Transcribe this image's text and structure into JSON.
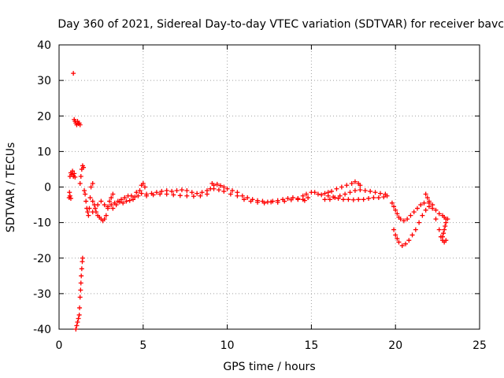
{
  "chart_data": {
    "type": "scatter",
    "title": "Day 360 of 2021, Sidereal Day-to-day VTEC variation (SDTVAR) for receiver bavc",
    "xlabel": "GPS time / hours",
    "ylabel": "SDTVAR / TECUs",
    "xlim": [
      0,
      25
    ],
    "ylim": [
      -40,
      40
    ],
    "xticks": [
      "0",
      "5",
      "10",
      "15",
      "20",
      "25"
    ],
    "yticks": [
      "40",
      "30",
      "20",
      "10",
      "0",
      "-10",
      "-20",
      "-30",
      "-40"
    ],
    "grid": true,
    "marker": "+",
    "color": "#ff0000",
    "series": [
      {
        "name": "SDTVAR",
        "points": [
          [
            0.6,
            -3
          ],
          [
            0.65,
            -2.5
          ],
          [
            0.62,
            -1.5
          ],
          [
            0.7,
            -3.2
          ],
          [
            0.65,
            3
          ],
          [
            0.7,
            4
          ],
          [
            0.75,
            3.5
          ],
          [
            0.8,
            4.5
          ],
          [
            0.85,
            3
          ],
          [
            0.9,
            3.8
          ],
          [
            0.95,
            2.8
          ],
          [
            0.85,
            32
          ],
          [
            0.9,
            19
          ],
          [
            0.95,
            18.5
          ],
          [
            1.0,
            18
          ],
          [
            1.05,
            17.5
          ],
          [
            1.1,
            18.5
          ],
          [
            1.15,
            17.8
          ],
          [
            1.2,
            18
          ],
          [
            1.25,
            17.5
          ],
          [
            1.0,
            -40
          ],
          [
            1.05,
            -39
          ],
          [
            1.1,
            -38
          ],
          [
            1.15,
            -37
          ],
          [
            1.2,
            -36
          ],
          [
            1.22,
            -34
          ],
          [
            1.25,
            -31
          ],
          [
            1.28,
            -29
          ],
          [
            1.3,
            -27
          ],
          [
            1.32,
            -25
          ],
          [
            1.35,
            -23
          ],
          [
            1.38,
            -21
          ],
          [
            1.4,
            -20
          ],
          [
            1.25,
            1
          ],
          [
            1.3,
            3
          ],
          [
            1.35,
            5
          ],
          [
            1.4,
            6
          ],
          [
            1.45,
            5.5
          ],
          [
            1.5,
            -1
          ],
          [
            1.55,
            -2
          ],
          [
            1.6,
            -4
          ],
          [
            1.65,
            -6
          ],
          [
            1.7,
            -7
          ],
          [
            1.75,
            -8
          ],
          [
            1.8,
            -6
          ],
          [
            1.85,
            -3
          ],
          [
            1.9,
            0
          ],
          [
            2.0,
            1
          ],
          [
            2.0,
            -4
          ],
          [
            2.1,
            -5
          ],
          [
            2.2,
            -7
          ],
          [
            2.3,
            -8
          ],
          [
            2.4,
            -8.5
          ],
          [
            2.5,
            -9
          ],
          [
            2.6,
            -9.5
          ],
          [
            2.7,
            -9
          ],
          [
            2.8,
            -8
          ],
          [
            2.9,
            -6
          ],
          [
            3.0,
            -4
          ],
          [
            3.1,
            -3
          ],
          [
            3.2,
            -2
          ],
          [
            2.0,
            -7
          ],
          [
            2.15,
            -6
          ],
          [
            2.3,
            -5
          ],
          [
            2.5,
            -4
          ],
          [
            2.7,
            -5
          ],
          [
            2.9,
            -5.5
          ],
          [
            3.1,
            -5
          ],
          [
            3.3,
            -4.5
          ],
          [
            3.5,
            -4
          ],
          [
            3.7,
            -3.5
          ],
          [
            3.9,
            -3
          ],
          [
            4.1,
            -2.5
          ],
          [
            4.3,
            -2.5
          ],
          [
            4.5,
            -2.8
          ],
          [
            4.7,
            -2.5
          ],
          [
            3.2,
            -6
          ],
          [
            3.4,
            -5
          ],
          [
            3.6,
            -4.2
          ],
          [
            3.8,
            -4.5
          ],
          [
            4.0,
            -4
          ],
          [
            4.2,
            -3.8
          ],
          [
            4.4,
            -3.5
          ],
          [
            4.6,
            -1.5
          ],
          [
            4.9,
            -1.8
          ],
          [
            5.2,
            -2
          ],
          [
            5.5,
            -1.8
          ],
          [
            5.8,
            -1.5
          ],
          [
            6.1,
            -1.2
          ],
          [
            6.4,
            -1.0
          ],
          [
            6.7,
            -1.2
          ],
          [
            7.0,
            -1.0
          ],
          [
            7.3,
            -0.8
          ],
          [
            7.6,
            -1.0
          ],
          [
            7.9,
            -1.5
          ],
          [
            8.2,
            -1.8
          ],
          [
            8.5,
            -1.5
          ],
          [
            8.8,
            -1
          ],
          [
            9.0,
            -0.5
          ],
          [
            4.9,
            0.5
          ],
          [
            5.0,
            1
          ],
          [
            5.1,
            0
          ],
          [
            4.8,
            -1
          ],
          [
            5.2,
            -2.5
          ],
          [
            5.6,
            -2.2
          ],
          [
            6.0,
            -2.0
          ],
          [
            6.4,
            -2.0
          ],
          [
            6.8,
            -2.2
          ],
          [
            7.2,
            -2.4
          ],
          [
            7.6,
            -2.5
          ],
          [
            8.0,
            -2.6
          ],
          [
            8.4,
            -2.5
          ],
          [
            8.8,
            -2.0
          ],
          [
            9.1,
            1
          ],
          [
            9.2,
            0.5
          ],
          [
            9.4,
            0.8
          ],
          [
            9.6,
            0.4
          ],
          [
            9.8,
            0
          ],
          [
            10.0,
            -0.5
          ],
          [
            10.3,
            -1
          ],
          [
            10.6,
            -1.5
          ],
          [
            10.9,
            -2.5
          ],
          [
            11.2,
            -3
          ],
          [
            11.5,
            -3.5
          ],
          [
            11.8,
            -3.8
          ],
          [
            12.1,
            -4
          ],
          [
            12.4,
            -4.2
          ],
          [
            12.7,
            -4
          ],
          [
            13.0,
            -3.8
          ],
          [
            13.3,
            -3.5
          ],
          [
            13.6,
            -3.2
          ],
          [
            13.9,
            -3
          ],
          [
            14.2,
            -3.2
          ],
          [
            14.5,
            -3.5
          ],
          [
            14.8,
            -3
          ],
          [
            9.2,
            -0.5
          ],
          [
            9.5,
            -0.8
          ],
          [
            9.8,
            -1.2
          ],
          [
            10.2,
            -2
          ],
          [
            10.6,
            -2.5
          ],
          [
            11.0,
            -3.5
          ],
          [
            11.4,
            -4
          ],
          [
            11.8,
            -4.3
          ],
          [
            12.2,
            -4.5
          ],
          [
            12.6,
            -4.2
          ],
          [
            13.0,
            -4.3
          ],
          [
            13.4,
            -4
          ],
          [
            13.8,
            -3.6
          ],
          [
            14.2,
            -3.5
          ],
          [
            14.6,
            -3.8
          ],
          [
            14.5,
            -2.5
          ],
          [
            14.7,
            -2
          ],
          [
            15.0,
            -1.5
          ],
          [
            15.2,
            -1.5
          ],
          [
            15.4,
            -2
          ],
          [
            15.6,
            -2.2
          ],
          [
            15.8,
            -1.8
          ],
          [
            16.0,
            -1.5
          ],
          [
            16.2,
            -1.2
          ],
          [
            16.5,
            -0.5
          ],
          [
            16.8,
            0
          ],
          [
            17.1,
            0.5
          ],
          [
            17.4,
            1
          ],
          [
            17.6,
            1.5
          ],
          [
            17.8,
            1
          ],
          [
            17.9,
            0.5
          ],
          [
            15.8,
            -3.5
          ],
          [
            16.1,
            -3.5
          ],
          [
            16.4,
            -3
          ],
          [
            16.7,
            -2.5
          ],
          [
            17.0,
            -2
          ],
          [
            17.3,
            -1.5
          ],
          [
            17.6,
            -1.0
          ],
          [
            17.9,
            -0.8
          ],
          [
            18.2,
            -1
          ],
          [
            18.5,
            -1.2
          ],
          [
            18.8,
            -1.5
          ],
          [
            19.1,
            -1.8
          ],
          [
            19.4,
            -2
          ],
          [
            16.0,
            -2.5
          ],
          [
            16.3,
            -2.8
          ],
          [
            16.6,
            -3.2
          ],
          [
            16.9,
            -3.5
          ],
          [
            17.2,
            -3.5
          ],
          [
            17.5,
            -3.6
          ],
          [
            17.8,
            -3.5
          ],
          [
            18.1,
            -3.5
          ],
          [
            18.4,
            -3.2
          ],
          [
            18.7,
            -3.0
          ],
          [
            19.0,
            -3.0
          ],
          [
            19.3,
            -2.8
          ],
          [
            19.5,
            -2.5
          ],
          [
            19.8,
            -4.5
          ],
          [
            19.9,
            -5.5
          ],
          [
            20.0,
            -6.5
          ],
          [
            20.1,
            -7.5
          ],
          [
            20.2,
            -8.5
          ],
          [
            20.3,
            -9
          ],
          [
            20.5,
            -9.5
          ],
          [
            20.7,
            -9
          ],
          [
            20.9,
            -8
          ],
          [
            21.1,
            -7
          ],
          [
            21.3,
            -6
          ],
          [
            21.5,
            -5
          ],
          [
            21.7,
            -4.5
          ],
          [
            19.9,
            -12
          ],
          [
            20.0,
            -13.5
          ],
          [
            20.1,
            -14.5
          ],
          [
            20.2,
            -15.5
          ],
          [
            20.4,
            -16.5
          ],
          [
            20.6,
            -16
          ],
          [
            20.8,
            -15
          ],
          [
            21.0,
            -13.5
          ],
          [
            21.2,
            -12
          ],
          [
            21.4,
            -10
          ],
          [
            21.6,
            -8
          ],
          [
            21.8,
            -6.5
          ],
          [
            22.0,
            -5.5
          ],
          [
            21.8,
            -2
          ],
          [
            21.9,
            -3
          ],
          [
            22.0,
            -4
          ],
          [
            22.2,
            -6
          ],
          [
            22.4,
            -9
          ],
          [
            22.6,
            -12
          ],
          [
            22.7,
            -14
          ],
          [
            22.8,
            -15
          ],
          [
            22.9,
            -15.5
          ],
          [
            23.0,
            -15
          ],
          [
            22.0,
            -4.5
          ],
          [
            22.2,
            -5
          ],
          [
            22.4,
            -6.5
          ],
          [
            22.6,
            -7.5
          ],
          [
            22.8,
            -8
          ],
          [
            22.9,
            -8.5
          ],
          [
            23.0,
            -9
          ],
          [
            22.8,
            -14
          ],
          [
            22.85,
            -13
          ],
          [
            22.9,
            -12
          ],
          [
            22.95,
            -11
          ],
          [
            23.0,
            -10
          ],
          [
            23.1,
            -9
          ]
        ]
      }
    ]
  }
}
